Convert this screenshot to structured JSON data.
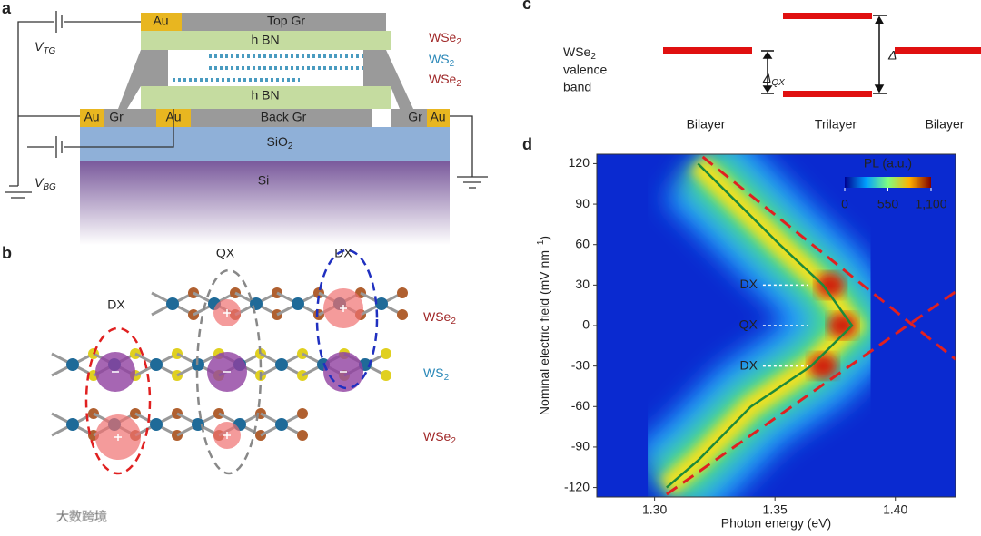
{
  "panel_labels": [
    "a",
    "b",
    "c",
    "d"
  ],
  "panel_a": {
    "au_top": "Au",
    "top_gr": "Top Gr",
    "hbn_top": "h BN",
    "layers": [
      {
        "text": "WSe",
        "sub": "2"
      },
      {
        "text": "WS",
        "sub": "2"
      },
      {
        "text": "WSe",
        "sub": "2"
      }
    ],
    "hbn_bottom": "h BN",
    "au_left": "Au",
    "gr_left": "Gr",
    "au_back": "Au",
    "back_gr": "Back Gr",
    "gr_right": "Gr",
    "au_right": "Au",
    "sio2": {
      "text": "SiO",
      "sub": "2"
    },
    "si": "Si",
    "vtg": {
      "text": "V",
      "sub": "TG"
    },
    "vbg": {
      "text": "V",
      "sub": "BG"
    }
  },
  "panel_b": {
    "qx": "QX",
    "dx_left": "DX",
    "dx_right": "DX",
    "layers": [
      {
        "text": "WSe",
        "sub": "2"
      },
      {
        "text": "WS",
        "sub": "2"
      },
      {
        "text": "WSe",
        "sub": "2"
      }
    ]
  },
  "panel_c": {
    "label_head": {
      "text": "WSe",
      "sub": "2"
    },
    "label_lines": [
      "valence",
      "band"
    ],
    "delta_qx": {
      "text": "Δ",
      "sub": "QX"
    },
    "delta": "Δ",
    "regions": [
      "Bilayer",
      "Trilayer",
      "Bilayer"
    ]
  },
  "chart_data": {
    "type": "line",
    "xlabel": "Photon energy (eV)",
    "ylabel": {
      "text": "Nominal electric field (mV nm",
      "sup": "−1",
      "tail": ")"
    },
    "xlim": [
      1.276,
      1.425
    ],
    "ylim": [
      -127,
      127
    ],
    "xticks": [
      {
        "value": 1.3,
        "label": "1.30"
      },
      {
        "value": 1.35,
        "label": "1.35"
      },
      {
        "value": 1.4,
        "label": "1.40"
      }
    ],
    "yticks": [
      -120,
      -90,
      -60,
      -30,
      0,
      30,
      60,
      90,
      120
    ],
    "annotations": [
      "DX",
      "QX",
      "DX"
    ],
    "colorbar": {
      "title": "PL (a.u.)",
      "lim": [
        0,
        1100
      ],
      "ticks": [
        0,
        550,
        {
          "value": 1100,
          "label": "1,100"
        }
      ]
    },
    "series": [
      {
        "color": "#1e8a3a",
        "style": "solid",
        "x": [
          1.305,
          1.318,
          1.34,
          1.365,
          1.382,
          1.37,
          1.352,
          1.335,
          1.318
        ],
        "values": [
          -120,
          -100,
          -60,
          -30,
          0,
          30,
          60,
          90,
          120
        ]
      },
      {
        "color": "#e02020",
        "style": "dashed",
        "x": [
          1.32,
          1.425
        ],
        "values": [
          125,
          -25
        ]
      },
      {
        "color": "#e02020",
        "style": "dashed",
        "x": [
          1.305,
          1.425
        ],
        "values": [
          -125,
          25
        ]
      }
    ]
  },
  "watermark": "大数跨境"
}
